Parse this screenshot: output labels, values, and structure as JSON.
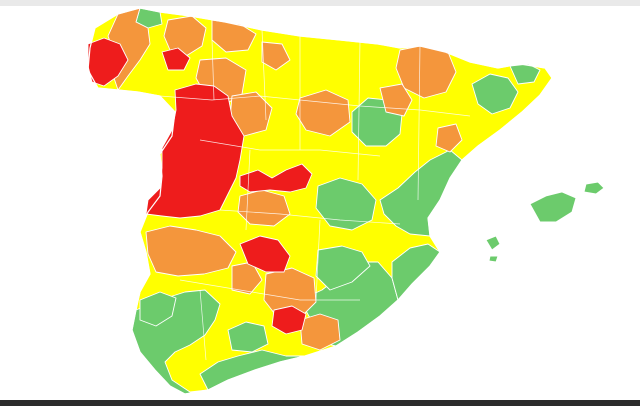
{
  "map": {
    "region": "Spain",
    "legend_levels": [
      {
        "level": "red",
        "color": "#ee1c1c"
      },
      {
        "level": "orange",
        "color": "#f4963c"
      },
      {
        "level": "yellow",
        "color": "#ffff00"
      },
      {
        "level": "green",
        "color": "#6ccb6c"
      }
    ],
    "background": "#ffffff"
  }
}
